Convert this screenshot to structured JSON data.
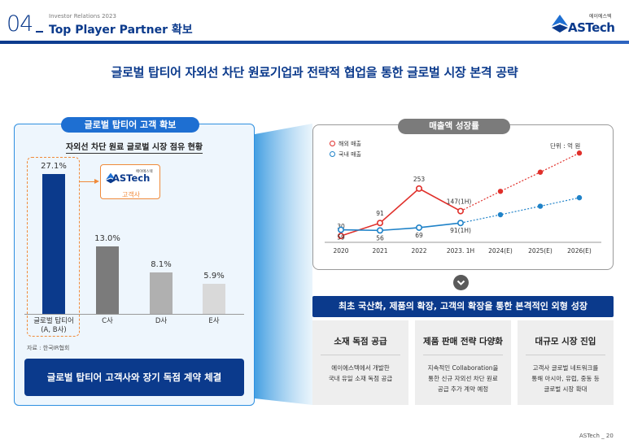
{
  "header": {
    "section_number": "04",
    "underscore": "_",
    "subtitle": "Investor Relations 2023",
    "title": "Top Player Partner 확보",
    "logo_text": "ASTech",
    "logo_korean": "에이에스텍"
  },
  "headline": "글로벌 탑티어 자외선 차단 원료기업과 전략적 협업을 통한 글로벌 시장 본격 공략",
  "left_panel": {
    "pill": "글로벌 탑티어 고객 확보",
    "chart_title": "자외선 차단 원료 글로벌 시장 점유 현황",
    "customer_logo": "ASTech",
    "customer_logo_korean": "에이에스텍",
    "customer_label": "고객사",
    "source": "자료 : 한국IR협회",
    "banner": "글로벌 탑티어 고객사와 장기 독점 계약 체결"
  },
  "right_panel": {
    "pill": "매출액 성장률",
    "unit": "단위 : 억 원",
    "cards": [
      {
        "title": "소재 독점 공급",
        "lines": [
          "에이에스텍에서 개발한",
          "국내 유일 소재 독점 공급"
        ]
      },
      {
        "title": "제품 판매 전략 다양화",
        "lines": [
          "지속적인 Collaboration을",
          "통한 신규 자외선 차단 원료",
          "공급 추가 계약 예정"
        ]
      },
      {
        "title": "대규모 시장 진입",
        "lines": [
          "고객사 글로벌 네트워크를",
          "통해 아시아, 유럽, 중동 등",
          "글로벌 시장 확대"
        ]
      }
    ]
  },
  "strategy_bar": "최초 국산화, 제품의 확장, 고객의 확장을 통한 본격적인 외형 성장",
  "footer": "ASTech _ 20",
  "colors": {
    "navy": "#0b3a8c",
    "blue_pill": "#1e6fd2",
    "overseas_red": "#e0302b",
    "domestic_blue": "#1f82c8",
    "orange": "#f08a3a"
  },
  "chart_data": [
    {
      "type": "bar",
      "title": "자외선 차단 원료 글로벌 시장 점유 현황",
      "categories": [
        "글로벌 탑티어\n(A, B사)",
        "C사",
        "D사",
        "E사"
      ],
      "values": [
        27.1,
        13.0,
        8.1,
        5.9
      ],
      "value_labels": [
        "27.1%",
        "13.0%",
        "8.1%",
        "5.9%"
      ],
      "bar_colors": [
        "#0b3a8c",
        "#7b7b7b",
        "#b0b0b0",
        "#d9d9d9"
      ],
      "ylim": [
        0,
        27.1
      ]
    },
    {
      "type": "line",
      "title": "매출액 성장률",
      "x": [
        "2020",
        "2021",
        "2022",
        "2023. 1H",
        "2024(E)",
        "2025(E)",
        "2026(E)"
      ],
      "series": [
        {
          "name": "해외 매출",
          "values": [
            30,
            91,
            253,
            147,
            null,
            null,
            null
          ],
          "projected": [
            null,
            null,
            null,
            147,
            240,
            330,
            420
          ],
          "labels": [
            "30",
            "91",
            "253",
            "147(1H)",
            "",
            "",
            ""
          ],
          "color": "#e0302b"
        },
        {
          "name": "국내 매출",
          "values": [
            59,
            56,
            69,
            91,
            null,
            null,
            null
          ],
          "projected": [
            null,
            null,
            null,
            91,
            130,
            170,
            210
          ],
          "labels": [
            "59",
            "56",
            "69",
            "91(1H)",
            "",
            "",
            ""
          ],
          "color": "#1f82c8"
        }
      ],
      "ylim": [
        0,
        440
      ],
      "legend_position": "top-left",
      "grid": false
    }
  ]
}
